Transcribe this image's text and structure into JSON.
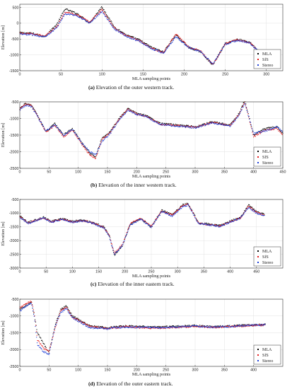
{
  "chart_data": [
    {
      "type": "scatter",
      "caption_label": "(a)",
      "caption_text": "Elevation of the outer western track.",
      "xlabel": "MLA sampling points",
      "ylabel": "Elevation [m]",
      "xlim": [
        0,
        320
      ],
      "ylim": [
        -1500,
        600
      ],
      "xticks": [
        0,
        50,
        100,
        150,
        200,
        250,
        300
      ],
      "yticks": [
        -1500,
        -1000,
        -500,
        0,
        500
      ],
      "grid": true,
      "legend_position": "bottom-right",
      "x_range": [
        0,
        305
      ],
      "series": [
        {
          "name": "MLA",
          "color": "#000000",
          "x": [
            0,
            15,
            30,
            45,
            55,
            70,
            85,
            100,
            115,
            130,
            145,
            160,
            175,
            190,
            205,
            220,
            235,
            250,
            265,
            280,
            295,
            305
          ],
          "y": [
            -300,
            -320,
            -420,
            -40,
            450,
            300,
            10,
            520,
            -120,
            -380,
            -520,
            -760,
            -910,
            -360,
            -760,
            -900,
            -1320,
            -640,
            -510,
            -600,
            -980,
            -1100
          ]
        },
        {
          "name": "SfS",
          "color": "#e41a1c",
          "x": [
            0,
            15,
            30,
            45,
            55,
            70,
            85,
            100,
            115,
            130,
            145,
            160,
            175,
            190,
            205,
            220,
            235,
            250,
            265,
            280,
            295,
            305
          ],
          "y": [
            -320,
            -340,
            -400,
            -120,
            350,
            260,
            40,
            430,
            -150,
            -400,
            -540,
            -790,
            -930,
            -330,
            -740,
            -880,
            -1300,
            -650,
            -520,
            -620,
            -1000,
            -1110
          ]
        },
        {
          "name": "Stereo",
          "color": "#1f3fd6",
          "x": [
            0,
            15,
            30,
            45,
            55,
            70,
            85,
            100,
            115,
            130,
            145,
            160,
            175,
            190,
            205,
            220,
            235,
            250,
            265,
            280,
            295,
            305
          ],
          "y": [
            -350,
            -360,
            -430,
            -150,
            300,
            240,
            0,
            380,
            -180,
            -420,
            -560,
            -800,
            -940,
            -420,
            -760,
            -900,
            -1280,
            -660,
            -540,
            -630,
            -1010,
            -1120
          ]
        }
      ]
    },
    {
      "type": "scatter",
      "caption_label": "(b)",
      "caption_text": "Elevation of the inner western track.",
      "xlabel": "MLA sampling points",
      "ylabel": "Elevation [m]",
      "xlim": [
        0,
        450
      ],
      "ylim": [
        -2500,
        -500
      ],
      "xticks": [
        0,
        50,
        100,
        150,
        200,
        250,
        300,
        350,
        400,
        450
      ],
      "yticks": [
        -2500,
        -2000,
        -1500,
        -1000,
        -500
      ],
      "grid": true,
      "legend_position": "bottom-right",
      "x_range": [
        0,
        450
      ],
      "series": [
        {
          "name": "MLA",
          "color": "#000000",
          "x": [
            0,
            10,
            20,
            30,
            45,
            60,
            75,
            90,
            105,
            120,
            130,
            140,
            155,
            170,
            185,
            200,
            215,
            240,
            270,
            300,
            330,
            360,
            375,
            385,
            400,
            420,
            440,
            450
          ],
          "y": [
            -700,
            -550,
            -600,
            -900,
            -1400,
            -1150,
            -1500,
            -1300,
            -1700,
            -2050,
            -2150,
            -1600,
            -1400,
            -1000,
            -700,
            -850,
            -900,
            -1150,
            -1200,
            -1250,
            -1100,
            -1200,
            -850,
            -450,
            -1500,
            -1300,
            -1250,
            -1450
          ]
        },
        {
          "name": "SfS",
          "color": "#e41a1c",
          "x": [
            0,
            10,
            20,
            30,
            45,
            60,
            75,
            90,
            105,
            120,
            130,
            140,
            155,
            170,
            185,
            200,
            215,
            240,
            270,
            300,
            330,
            360,
            375,
            385,
            400,
            420,
            440,
            450
          ],
          "y": [
            -720,
            -560,
            -620,
            -920,
            -1420,
            -1200,
            -1550,
            -1350,
            -1750,
            -2100,
            -2200,
            -1650,
            -1420,
            -1020,
            -720,
            -870,
            -920,
            -1170,
            -1220,
            -1270,
            -1120,
            -1220,
            -880,
            -500,
            -1550,
            -1350,
            -1300,
            -1500
          ]
        },
        {
          "name": "Stereo",
          "color": "#1f3fd6",
          "x": [
            0,
            10,
            20,
            30,
            45,
            60,
            75,
            90,
            105,
            120,
            130,
            140,
            155,
            170,
            185,
            200,
            215,
            240,
            270,
            300,
            330,
            360,
            375,
            385,
            400,
            420,
            440,
            450
          ],
          "y": [
            -740,
            -600,
            -640,
            -940,
            -1380,
            -1180,
            -1500,
            -1330,
            -1720,
            -2000,
            -2100,
            -1700,
            -1450,
            -1050,
            -750,
            -880,
            -940,
            -1180,
            -1230,
            -1280,
            -1130,
            -1230,
            -900,
            -550,
            -1450,
            -1380,
            -1250,
            -1400
          ]
        }
      ]
    },
    {
      "type": "scatter",
      "caption_label": "(c)",
      "caption_text": "Elevation of the inner eastern track.",
      "xlabel": "MLA sampling points",
      "ylabel": "Elevation [m]",
      "xlim": [
        0,
        500
      ],
      "ylim": [
        -3000,
        -500
      ],
      "xticks": [
        0,
        50,
        100,
        150,
        200,
        250,
        300,
        350,
        400,
        450
      ],
      "yticks": [
        -3000,
        -2500,
        -2000,
        -1500,
        -1000,
        -500
      ],
      "grid": true,
      "legend_position": "bottom-right",
      "x_range": [
        0,
        465
      ],
      "series": [
        {
          "name": "MLA",
          "color": "#000000",
          "x": [
            0,
            15,
            30,
            45,
            60,
            80,
            100,
            120,
            140,
            160,
            170,
            180,
            185,
            195,
            210,
            230,
            250,
            270,
            290,
            310,
            320,
            340,
            360,
            380,
            400,
            420,
            435,
            450,
            465
          ],
          "y": [
            -1100,
            -1350,
            -1250,
            -1150,
            -1300,
            -1200,
            -1300,
            -1250,
            -1350,
            -1500,
            -1800,
            -2550,
            -2400,
            -2200,
            -1400,
            -1200,
            -1500,
            -900,
            -1050,
            -700,
            -650,
            -1350,
            -1400,
            -1450,
            -1300,
            -1150,
            -700,
            -950,
            -1050
          ]
        },
        {
          "name": "SfS",
          "color": "#e41a1c",
          "x": [
            0,
            15,
            30,
            45,
            60,
            80,
            100,
            120,
            140,
            160,
            170,
            180,
            185,
            195,
            210,
            230,
            250,
            270,
            290,
            310,
            320,
            340,
            360,
            380,
            400,
            420,
            435,
            450,
            465
          ],
          "y": [
            -1120,
            -1370,
            -1270,
            -1170,
            -1320,
            -1220,
            -1320,
            -1270,
            -1370,
            -1520,
            -1820,
            -2450,
            -2350,
            -2150,
            -1380,
            -1180,
            -1480,
            -920,
            -1070,
            -720,
            -680,
            -1370,
            -1420,
            -1470,
            -1320,
            -1170,
            -750,
            -980,
            -1070
          ]
        },
        {
          "name": "Stereo",
          "color": "#1f3fd6",
          "x": [
            0,
            15,
            30,
            45,
            60,
            80,
            100,
            120,
            140,
            160,
            170,
            180,
            185,
            195,
            210,
            230,
            250,
            270,
            290,
            310,
            320,
            340,
            360,
            380,
            400,
            420,
            435,
            450,
            465
          ],
          "y": [
            -1150,
            -1380,
            -1280,
            -1180,
            -1330,
            -1230,
            -1330,
            -1280,
            -1380,
            -1540,
            -1850,
            -2500,
            -2380,
            -2180,
            -1420,
            -1220,
            -1520,
            -950,
            -1100,
            -760,
            -700,
            -1380,
            -1430,
            -1480,
            -1330,
            -1180,
            -780,
            -1000,
            -1080
          ]
        }
      ]
    },
    {
      "type": "scatter",
      "caption_label": "(d)",
      "caption_text": "Elevation of the outer eastern track.",
      "xlabel": "MLA sampling points",
      "ylabel": "Elevation [m]",
      "xlim": [
        0,
        450
      ],
      "ylim": [
        -2500,
        -500
      ],
      "xticks": [
        0,
        50,
        100,
        150,
        200,
        250,
        300,
        350,
        400
      ],
      "yticks": [
        -2500,
        -2000,
        -1500,
        -1000,
        -500
      ],
      "grid": true,
      "legend_position": "bottom-right",
      "x_range": [
        0,
        420
      ],
      "series": [
        {
          "name": "MLA",
          "color": "#000000",
          "x": [
            0,
            10,
            20,
            25,
            30,
            40,
            50,
            60,
            70,
            80,
            90,
            100,
            120,
            150,
            180,
            210,
            240,
            270,
            300,
            330,
            360,
            390,
            420
          ],
          "y": [
            -800,
            -700,
            -600,
            -1000,
            -1500,
            -1800,
            -2100,
            -1300,
            -800,
            -700,
            -1000,
            -1100,
            -1300,
            -1350,
            -1300,
            -1320,
            -1330,
            -1310,
            -1290,
            -1320,
            -1300,
            -1270,
            -1250
          ]
        },
        {
          "name": "SfS",
          "color": "#e41a1c",
          "x": [
            0,
            10,
            20,
            25,
            30,
            40,
            50,
            60,
            70,
            80,
            90,
            100,
            120,
            150,
            180,
            210,
            240,
            270,
            300,
            330,
            360,
            390,
            420
          ],
          "y": [
            -750,
            -650,
            -550,
            -950,
            -1700,
            -1950,
            -2050,
            -1400,
            -850,
            -750,
            -1050,
            -1120,
            -1320,
            -1370,
            -1320,
            -1350,
            -1360,
            -1340,
            -1310,
            -1340,
            -1320,
            -1290,
            -1270
          ]
        },
        {
          "name": "Stereo",
          "color": "#1f3fd6",
          "x": [
            0,
            10,
            20,
            25,
            30,
            40,
            50,
            60,
            70,
            80,
            90,
            100,
            120,
            150,
            180,
            210,
            240,
            270,
            300,
            330,
            360,
            390,
            420
          ],
          "y": [
            -850,
            -720,
            -620,
            -1050,
            -1850,
            -2050,
            -2150,
            -1350,
            -900,
            -780,
            -1050,
            -1150,
            -1350,
            -1380,
            -1330,
            -1340,
            -1350,
            -1330,
            -1300,
            -1330,
            -1310,
            -1280,
            -1260
          ]
        }
      ]
    }
  ]
}
